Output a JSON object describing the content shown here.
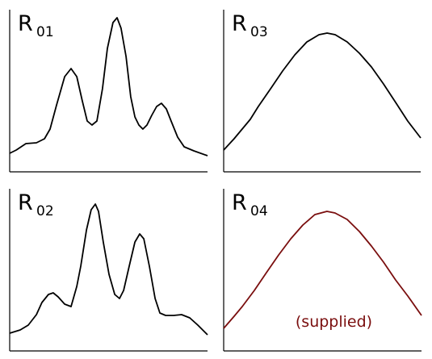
{
  "chart_data": [
    {
      "type": "line",
      "label": "R",
      "subscript": "01",
      "color": "#000000",
      "xlim": [
        0,
        100
      ],
      "ylim": [
        0,
        100
      ],
      "x": [
        0,
        3.3,
        8.2,
        13.5,
        17.6,
        20.4,
        23.7,
        27.8,
        31,
        33.9,
        36.7,
        39.2,
        41.6,
        44.1,
        46.9,
        49.4,
        52.2,
        54.3,
        56.3,
        58.8,
        61.2,
        63.3,
        65.3,
        67.3,
        69.4,
        71.8,
        74.3,
        76.7,
        79.2,
        81.6,
        84.9,
        88.2,
        93.1,
        100
      ],
      "values": [
        11.5,
        13.5,
        17.5,
        18,
        20.5,
        26.5,
        41.5,
        59,
        64,
        59,
        44,
        31.5,
        29,
        31.5,
        51.5,
        76.5,
        92.5,
        95.5,
        89,
        71.5,
        46.5,
        34,
        29,
        26.5,
        29,
        35,
        40.5,
        42.5,
        39,
        31.5,
        21.5,
        15.5,
        13,
        10
      ]
    },
    {
      "type": "line",
      "label": "R",
      "subscript": "03",
      "color": "#000000",
      "xlim": [
        0,
        100
      ],
      "ylim": [
        0,
        100
      ],
      "x": [
        0,
        5.3,
        9.4,
        13.5,
        17.6,
        23.8,
        29.9,
        36.1,
        42.2,
        48.4,
        52.5,
        56.6,
        62.7,
        68.9,
        75,
        81.1,
        87.3,
        93.4,
        100
      ],
      "values": [
        13.5,
        20.5,
        26.5,
        32.5,
        40.5,
        51.5,
        62.5,
        72.5,
        80.5,
        85,
        86,
        85,
        80.5,
        73.5,
        65,
        54.5,
        43,
        31.5,
        21
      ]
    },
    {
      "type": "line",
      "label": "R",
      "subscript": "02",
      "color": "#000000",
      "xlim": [
        0,
        100
      ],
      "ylim": [
        0,
        100
      ],
      "x": [
        0,
        5.3,
        9.4,
        13.5,
        16.3,
        19.6,
        22,
        24.5,
        27.8,
        31,
        33.9,
        35.9,
        38.8,
        41.2,
        43.3,
        44.9,
        47.3,
        50.2,
        53.1,
        55.5,
        57.6,
        60.4,
        63.3,
        65.7,
        67.8,
        70.6,
        73.5,
        75.9,
        78.8,
        82.9,
        86.9,
        91,
        95.1,
        100
      ],
      "values": [
        11,
        13,
        16,
        22.5,
        30,
        35,
        36,
        33.5,
        29,
        27.5,
        40,
        52.5,
        75,
        87.5,
        91,
        86.5,
        67.5,
        47.5,
        35,
        32.5,
        37.5,
        52.5,
        67.5,
        72.5,
        69.5,
        52.5,
        32.5,
        23.5,
        22,
        22,
        22.5,
        20.5,
        16,
        10
      ]
    },
    {
      "type": "line",
      "label": "R",
      "subscript": "04",
      "color": "#7a0e0e",
      "xlim": [
        0,
        100
      ],
      "ylim": [
        0,
        100
      ],
      "annotation": "(supplied)",
      "x": [
        0,
        5.3,
        9.4,
        15.5,
        21.6,
        27.8,
        33.9,
        40,
        46.1,
        52.2,
        56.3,
        62.4,
        68.6,
        74.7,
        80.8,
        86.9,
        93.1,
        100
      ],
      "values": [
        14,
        21.5,
        27.5,
        37.5,
        48.5,
        59.5,
        69.5,
        78,
        84.5,
        86.5,
        85.5,
        81.5,
        74,
        65,
        55,
        44,
        34,
        22
      ]
    }
  ]
}
